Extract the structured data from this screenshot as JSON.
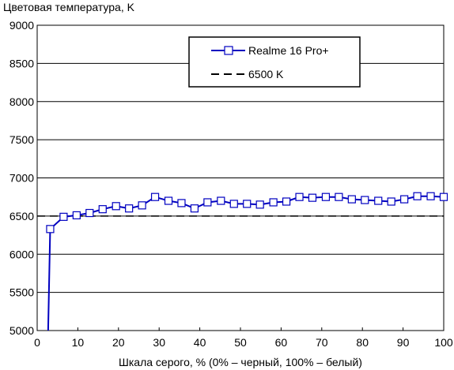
{
  "chart_data": {
    "type": "line",
    "title": "",
    "ylabel": "Цветовая температура, K",
    "xlabel": "Шкала серого, % (0% – черный, 100% – белый)",
    "xlim": [
      0,
      100
    ],
    "ylim": [
      5000,
      9000
    ],
    "xticks": [
      0,
      10,
      20,
      30,
      40,
      50,
      60,
      70,
      80,
      90,
      100
    ],
    "yticks": [
      5000,
      5500,
      6000,
      6500,
      7000,
      7500,
      8000,
      8500,
      9000
    ],
    "grid": "horizontal",
    "legend_position": "top-right",
    "series": [
      {
        "name": "Realme 16 Pro+",
        "color": "#0000c0",
        "marker": "square",
        "points": [
          [
            2.7,
            5000
          ],
          [
            3.2,
            6330
          ],
          [
            6.5,
            6490
          ],
          [
            9.7,
            6510
          ],
          [
            12.9,
            6540
          ],
          [
            16.1,
            6590
          ],
          [
            19.4,
            6630
          ],
          [
            22.6,
            6600
          ],
          [
            25.8,
            6640
          ],
          [
            29.0,
            6750
          ],
          [
            32.3,
            6700
          ],
          [
            35.5,
            6670
          ],
          [
            38.7,
            6600
          ],
          [
            41.9,
            6680
          ],
          [
            45.2,
            6700
          ],
          [
            48.4,
            6660
          ],
          [
            51.6,
            6660
          ],
          [
            54.8,
            6650
          ],
          [
            58.1,
            6680
          ],
          [
            61.3,
            6690
          ],
          [
            64.5,
            6750
          ],
          [
            67.7,
            6740
          ],
          [
            71.0,
            6750
          ],
          [
            74.2,
            6750
          ],
          [
            77.4,
            6720
          ],
          [
            80.6,
            6710
          ],
          [
            83.9,
            6700
          ],
          [
            87.1,
            6690
          ],
          [
            90.3,
            6720
          ],
          [
            93.5,
            6760
          ],
          [
            96.8,
            6760
          ],
          [
            100.0,
            6750
          ]
        ]
      },
      {
        "name": "6500 K",
        "color": "#000000",
        "dash": true,
        "points": [
          [
            0,
            6500
          ],
          [
            100,
            6500
          ]
        ]
      }
    ]
  }
}
